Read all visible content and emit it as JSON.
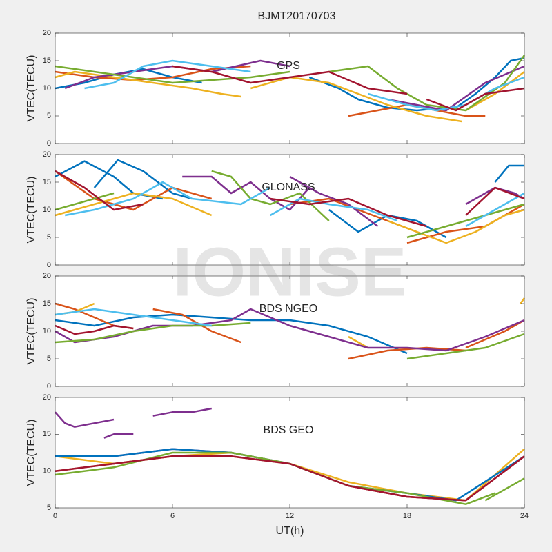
{
  "watermark": "IONISE",
  "chart_data": [
    {
      "type": "line",
      "title": "BJMT20170703",
      "annotation": "GPS",
      "ylabel": "VTEC(TECU)",
      "xlim": [
        0,
        24
      ],
      "xticks": [
        0,
        6,
        12,
        18,
        24
      ],
      "xtick_labels": false,
      "ylim": [
        0,
        20
      ],
      "yticks": [
        0,
        5,
        10,
        15,
        20
      ],
      "series": [
        {
          "color": "#0072BD",
          "x": [
            0,
            1.5,
            3,
            4.5,
            6,
            7.5
          ],
          "values": [
            10,
            11,
            12.5,
            13.5,
            12,
            11
          ]
        },
        {
          "color": "#0072BD",
          "x": [
            13,
            14.5,
            15.5,
            17,
            18.5,
            20
          ],
          "values": [
            12,
            10,
            8,
            6.5,
            6,
            6.5
          ]
        },
        {
          "color": "#0072BD",
          "x": [
            20.5,
            21.5,
            22.5,
            23.3,
            24
          ],
          "values": [
            6.5,
            9,
            12,
            15,
            15.5
          ]
        },
        {
          "color": "#D95319",
          "x": [
            0,
            2,
            4,
            6,
            8,
            10
          ],
          "values": [
            13,
            12,
            11.5,
            12,
            13.5,
            14
          ]
        },
        {
          "color": "#D95319",
          "x": [
            15,
            16.5,
            18,
            19.5,
            21,
            22
          ],
          "values": [
            5,
            6,
            7,
            6,
            5,
            5
          ]
        },
        {
          "color": "#EDB120",
          "x": [
            0,
            1,
            3,
            5,
            7,
            8.5,
            9.5
          ],
          "values": [
            12,
            13,
            12,
            11,
            10,
            9,
            8.5
          ]
        },
        {
          "color": "#EDB120",
          "x": [
            10,
            12,
            14,
            15.5,
            17,
            19,
            20.8
          ],
          "values": [
            10,
            12,
            11,
            9,
            7,
            5,
            4
          ]
        },
        {
          "color": "#EDB120",
          "x": [
            21,
            22.5,
            24
          ],
          "values": [
            6,
            9,
            13
          ]
        },
        {
          "color": "#7E2F8E",
          "x": [
            0.5,
            2,
            4,
            6,
            8,
            10.5,
            12
          ],
          "values": [
            10,
            12,
            13,
            14,
            13,
            15,
            14
          ]
        },
        {
          "color": "#7E2F8E",
          "x": [
            17,
            18.5,
            20,
            22,
            24
          ],
          "values": [
            8,
            7,
            6,
            11,
            14
          ]
        },
        {
          "color": "#77AC30",
          "x": [
            0,
            2,
            4,
            6,
            8,
            10,
            12
          ],
          "values": [
            14,
            13,
            12,
            11,
            11.5,
            12,
            13
          ]
        },
        {
          "color": "#77AC30",
          "x": [
            14,
            16,
            17.5,
            19,
            21,
            23,
            24
          ],
          "values": [
            13,
            14,
            10,
            7,
            6,
            11,
            16
          ]
        },
        {
          "color": "#4DBEEE",
          "x": [
            1.5,
            3,
            4.5,
            6,
            8,
            10
          ],
          "values": [
            10,
            11,
            14,
            15,
            14,
            13
          ]
        },
        {
          "color": "#4DBEEE",
          "x": [
            16,
            18,
            19.5,
            21,
            22.5,
            24
          ],
          "values": [
            9,
            7,
            6,
            7,
            10,
            12
          ]
        },
        {
          "color": "#A2142F",
          "x": [
            6,
            8,
            10,
            12,
            14,
            16,
            18
          ],
          "values": [
            14,
            13,
            11,
            12,
            13,
            10,
            9
          ]
        },
        {
          "color": "#A2142F",
          "x": [
            19,
            20.5,
            22,
            24
          ],
          "values": [
            8,
            6,
            9,
            10
          ]
        }
      ]
    },
    {
      "type": "line",
      "annotation": "GLONASS",
      "ylabel": "VTEC(TECU)",
      "xlim": [
        0,
        24
      ],
      "xticks": [
        0,
        6,
        12,
        18,
        24
      ],
      "xtick_labels": false,
      "ylim": [
        0,
        20
      ],
      "yticks": [
        0,
        5,
        10,
        15,
        20
      ],
      "series": [
        {
          "color": "#0072BD",
          "x": [
            0,
            1.5,
            3,
            4,
            5.5
          ],
          "values": [
            16,
            18.8,
            16,
            13,
            12
          ]
        },
        {
          "color": "#0072BD",
          "x": [
            2,
            3.2,
            4.5,
            6,
            7
          ],
          "values": [
            14,
            19,
            17,
            13,
            12
          ]
        },
        {
          "color": "#0072BD",
          "x": [
            14,
            15.5,
            17,
            18.5,
            20
          ],
          "values": [
            10,
            6,
            9,
            8,
            5
          ]
        },
        {
          "color": "#0072BD",
          "x": [
            22.5,
            23.2,
            24
          ],
          "values": [
            15,
            18,
            18
          ]
        },
        {
          "color": "#D95319",
          "x": [
            0,
            2,
            4,
            6,
            8
          ],
          "values": [
            17,
            12,
            10,
            14,
            12
          ]
        },
        {
          "color": "#D95319",
          "x": [
            12,
            14,
            15.5,
            17,
            18.5
          ],
          "values": [
            11,
            12,
            10,
            8,
            6
          ]
        },
        {
          "color": "#D95319",
          "x": [
            18,
            20,
            22,
            24
          ],
          "values": [
            4,
            6,
            7,
            11
          ]
        },
        {
          "color": "#EDB120",
          "x": [
            0,
            2,
            4,
            6,
            8
          ],
          "values": [
            9,
            11,
            13,
            12,
            9
          ]
        },
        {
          "color": "#EDB120",
          "x": [
            17,
            18.5,
            20,
            21.5,
            23,
            24
          ],
          "values": [
            8,
            6,
            4,
            6,
            9,
            10
          ]
        },
        {
          "color": "#7E2F8E",
          "x": [
            6.5,
            8,
            9,
            10,
            11,
            12,
            13
          ],
          "values": [
            16,
            16,
            13,
            15,
            12,
            10,
            14
          ]
        },
        {
          "color": "#7E2F8E",
          "x": [
            12,
            13.5,
            15,
            16.5
          ],
          "values": [
            16,
            13,
            11,
            7
          ]
        },
        {
          "color": "#7E2F8E",
          "x": [
            21,
            22.5,
            23.5,
            24
          ],
          "values": [
            11,
            14,
            13,
            12
          ]
        },
        {
          "color": "#77AC30",
          "x": [
            0,
            2,
            3
          ],
          "values": [
            10,
            12,
            13
          ]
        },
        {
          "color": "#77AC30",
          "x": [
            8,
            9,
            10,
            11,
            12.5,
            14
          ],
          "values": [
            17,
            16,
            12,
            11,
            13,
            8
          ]
        },
        {
          "color": "#77AC30",
          "x": [
            18,
            20,
            22,
            24
          ],
          "values": [
            5,
            7,
            9,
            11
          ]
        },
        {
          "color": "#4DBEEE",
          "x": [
            0.5,
            2,
            4,
            5.5,
            7,
            9.5,
            11
          ],
          "values": [
            9,
            10,
            12,
            15,
            12,
            11,
            14
          ]
        },
        {
          "color": "#4DBEEE",
          "x": [
            11,
            12.5,
            14,
            16,
            17.5
          ],
          "values": [
            9,
            12,
            11,
            10,
            8
          ]
        },
        {
          "color": "#4DBEEE",
          "x": [
            21,
            22.5,
            24
          ],
          "values": [
            7,
            10,
            13
          ]
        },
        {
          "color": "#A2142F",
          "x": [
            0,
            1.5,
            3,
            4.5
          ],
          "values": [
            17,
            14,
            10,
            11
          ]
        },
        {
          "color": "#A2142F",
          "x": [
            11,
            13,
            15,
            17,
            19
          ],
          "values": [
            12,
            11,
            12,
            9,
            7
          ]
        },
        {
          "color": "#A2142F",
          "x": [
            21,
            22.5,
            24
          ],
          "values": [
            9,
            14,
            12
          ]
        }
      ]
    },
    {
      "type": "line",
      "annotation": "BDS NGEO",
      "ylabel": "VTEC(TECU)",
      "xlim": [
        0,
        24
      ],
      "xticks": [
        0,
        6,
        12,
        18,
        24
      ],
      "xtick_labels": false,
      "ylim": [
        0,
        20
      ],
      "yticks": [
        0,
        5,
        10,
        15,
        20
      ],
      "series": [
        {
          "color": "#0072BD",
          "x": [
            0,
            2,
            4,
            6,
            8,
            10,
            12,
            14,
            16,
            18
          ],
          "values": [
            12,
            11,
            12.5,
            13,
            12.5,
            12,
            12,
            11,
            9,
            6
          ]
        },
        {
          "color": "#D95319",
          "x": [
            0,
            1,
            2,
            3,
            4
          ],
          "values": [
            15,
            14,
            12.5,
            11,
            10.5
          ]
        },
        {
          "color": "#D95319",
          "x": [
            5,
            6.5,
            8,
            9.5
          ],
          "values": [
            14,
            13,
            10,
            8
          ]
        },
        {
          "color": "#D95319",
          "x": [
            15,
            17,
            19,
            21
          ],
          "values": [
            5,
            6.5,
            7,
            6.5
          ]
        },
        {
          "color": "#D95319",
          "x": [
            21,
            23,
            24
          ],
          "values": [
            7,
            10,
            12
          ]
        },
        {
          "color": "#EDB120",
          "x": [
            0,
            1,
            2
          ],
          "values": [
            13,
            13.5,
            15
          ]
        },
        {
          "color": "#EDB120",
          "x": [
            15,
            15.5,
            16
          ],
          "values": [
            9,
            8,
            7
          ]
        },
        {
          "color": "#EDB120",
          "x": [
            23.8,
            24
          ],
          "values": [
            15,
            16
          ]
        },
        {
          "color": "#7E2F8E",
          "x": [
            0,
            1,
            3,
            5,
            7,
            9,
            10,
            12,
            14,
            16,
            18,
            20,
            22,
            24
          ],
          "values": [
            10,
            8,
            9,
            11,
            11,
            12,
            14,
            11,
            9,
            7,
            7,
            6.5,
            9,
            12
          ]
        },
        {
          "color": "#77AC30",
          "x": [
            0,
            2,
            4,
            6,
            8,
            10
          ],
          "values": [
            8,
            8.5,
            10,
            11,
            11,
            11.5
          ]
        },
        {
          "color": "#77AC30",
          "x": [
            18,
            20,
            22,
            24
          ],
          "values": [
            5,
            6,
            7,
            9.5
          ]
        },
        {
          "color": "#4DBEEE",
          "x": [
            0,
            2,
            4,
            6,
            8
          ],
          "values": [
            13,
            14,
            13,
            12,
            11
          ]
        },
        {
          "color": "#A2142F",
          "x": [
            0,
            1,
            2,
            3,
            4
          ],
          "values": [
            11,
            9.5,
            10,
            11,
            10.5
          ]
        }
      ]
    },
    {
      "type": "line",
      "annotation": "BDS GEO",
      "ylabel": "VTEC(TECU)",
      "xlabel": "UT(h)",
      "xlim": [
        0,
        24
      ],
      "xticks": [
        0,
        6,
        12,
        18,
        24
      ],
      "xtick_labels": true,
      "ylim": [
        5,
        20
      ],
      "yticks": [
        5,
        10,
        15,
        20
      ],
      "series": [
        {
          "color": "#7E2F8E",
          "x": [
            0,
            0.5,
            1,
            2,
            3
          ],
          "values": [
            18,
            16.5,
            16,
            16.5,
            17
          ]
        },
        {
          "color": "#7E2F8E",
          "x": [
            2.5,
            3,
            4
          ],
          "values": [
            14.5,
            15,
            15
          ]
        },
        {
          "color": "#7E2F8E",
          "x": [
            5,
            6,
            7,
            8
          ],
          "values": [
            17.5,
            18,
            18,
            18.5
          ]
        },
        {
          "color": "#7E2F8E",
          "x": [
            0,
            3,
            6,
            9,
            12,
            15,
            18,
            21,
            24
          ],
          "values": [
            12,
            12,
            13,
            12.5,
            11,
            8,
            6.5,
            6,
            12
          ]
        },
        {
          "color": "#EDB120",
          "x": [
            0,
            3,
            6,
            9,
            12,
            15,
            18,
            21,
            24
          ],
          "values": [
            12,
            11,
            12,
            12.5,
            11,
            8.5,
            7,
            6,
            13
          ]
        },
        {
          "color": "#0072BD",
          "x": [
            0,
            3,
            6,
            9,
            12,
            15,
            18,
            20.5,
            24
          ],
          "values": [
            12,
            12,
            13,
            12.5,
            11,
            8,
            7,
            6,
            12
          ]
        },
        {
          "color": "#D95319",
          "x": [
            0,
            3,
            6,
            9,
            12,
            15,
            18,
            21,
            24
          ],
          "values": [
            10,
            11,
            12,
            12,
            11,
            8,
            6.5,
            6,
            12
          ]
        },
        {
          "color": "#77AC30",
          "x": [
            0,
            3,
            6,
            9,
            12,
            15,
            18,
            21,
            22.5
          ],
          "values": [
            9.5,
            10.5,
            12.5,
            12.5,
            11,
            8,
            7,
            5.5,
            7
          ]
        },
        {
          "color": "#77AC30",
          "x": [
            22,
            24
          ],
          "values": [
            6,
            9
          ]
        },
        {
          "color": "#A2142F",
          "x": [
            0,
            3,
            6,
            9,
            12,
            15,
            18,
            21,
            24
          ],
          "values": [
            10,
            11,
            12,
            12,
            11,
            8,
            6.5,
            6,
            12
          ]
        }
      ]
    }
  ]
}
